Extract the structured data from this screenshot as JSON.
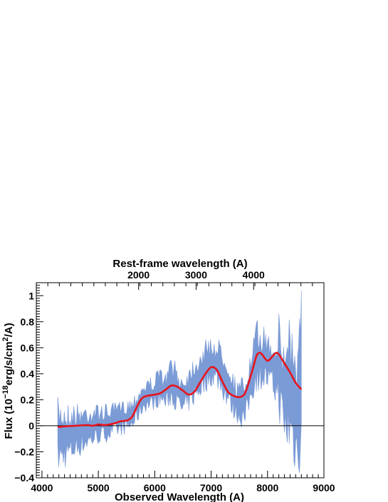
{
  "chart_data": {
    "type": "line",
    "xlabel": "Observed Wavelength (A)",
    "x2label": "Rest-frame wavelength (A)",
    "ylabel_parts": [
      "Flux (10",
      "−18",
      "erg/s/cm",
      "2",
      "/A)"
    ],
    "xlim": [
      3900,
      9000
    ],
    "ylim": [
      -0.4,
      1.1
    ],
    "x_ticks": [
      4000,
      5000,
      6000,
      7000,
      8000,
      9000
    ],
    "x_tick_labels": [
      "4000",
      "5000",
      "6000",
      "7000",
      "8000",
      "9000"
    ],
    "y_ticks": [
      -0.4,
      -0.2,
      0,
      0.2,
      0.4,
      0.6,
      0.8,
      1
    ],
    "y_tick_labels": [
      "−0.4",
      "−0.2",
      "0",
      "0.2",
      "0.4",
      "0.6",
      "0.8",
      "1"
    ],
    "x2_ticks": [
      3.2,
      5.0,
      6.8
    ],
    "x2_tick_labels": [
      "2000",
      "3000",
      "4000"
    ],
    "zero_line": 0,
    "colors": {
      "spectrum": "#7b9bd6",
      "model": "#e8141c",
      "axis": "#000000"
    },
    "series": [
      {
        "kind": "band",
        "x": [
          4280,
          4500,
          4800,
          5000,
          5200,
          5400,
          5600,
          5800,
          6000,
          6100,
          6200,
          6300,
          6400,
          6500,
          6600,
          6700,
          6800,
          6900,
          7000,
          7100,
          7200,
          7300,
          7400,
          7500,
          7600,
          7700,
          7800,
          7900,
          8000,
          8100,
          8200,
          8300,
          8400,
          8500,
          8600
        ],
        "high": [
          0.22,
          0.18,
          0.18,
          0.17,
          0.17,
          0.19,
          0.23,
          0.35,
          0.4,
          0.46,
          0.4,
          0.57,
          0.45,
          0.4,
          0.47,
          0.55,
          0.6,
          0.66,
          0.7,
          0.68,
          0.65,
          0.58,
          0.4,
          0.35,
          0.42,
          0.55,
          0.82,
          0.78,
          0.75,
          0.72,
          0.88,
          0.65,
          1.05,
          0.55,
          1.1
        ],
        "low": [
          -0.38,
          -0.3,
          -0.2,
          -0.15,
          -0.12,
          -0.08,
          -0.05,
          0.1,
          0.12,
          0.15,
          0.12,
          0.15,
          0.1,
          0.05,
          0.1,
          0.15,
          0.2,
          0.25,
          0.3,
          0.28,
          0.2,
          0.12,
          0.05,
          0.0,
          -0.05,
          0.15,
          0.25,
          0.28,
          0.25,
          0.2,
          0.05,
          -0.2,
          -0.3,
          -0.38,
          -0.4
        ]
      },
      {
        "kind": "line",
        "x": [
          4280,
          4400,
          4600,
          4800,
          4900,
          5000,
          5100,
          5200,
          5300,
          5400,
          5500,
          5600,
          5700,
          5800,
          6000,
          6100,
          6200,
          6300,
          6400,
          6500,
          6600,
          6700,
          6800,
          6900,
          7000,
          7100,
          7200,
          7300,
          7400,
          7500,
          7600,
          7700,
          7800,
          7850,
          7900,
          8000,
          8100,
          8150,
          8200,
          8300,
          8400,
          8500,
          8600
        ],
        "y": [
          -0.01,
          -0.005,
          0.0,
          0.005,
          0.0,
          0.01,
          0.005,
          0.01,
          0.02,
          0.035,
          0.04,
          0.07,
          0.16,
          0.22,
          0.24,
          0.25,
          0.28,
          0.31,
          0.3,
          0.27,
          0.24,
          0.26,
          0.33,
          0.4,
          0.45,
          0.43,
          0.34,
          0.26,
          0.23,
          0.22,
          0.25,
          0.38,
          0.53,
          0.56,
          0.55,
          0.5,
          0.54,
          0.56,
          0.55,
          0.48,
          0.41,
          0.33,
          0.28
        ]
      }
    ]
  }
}
